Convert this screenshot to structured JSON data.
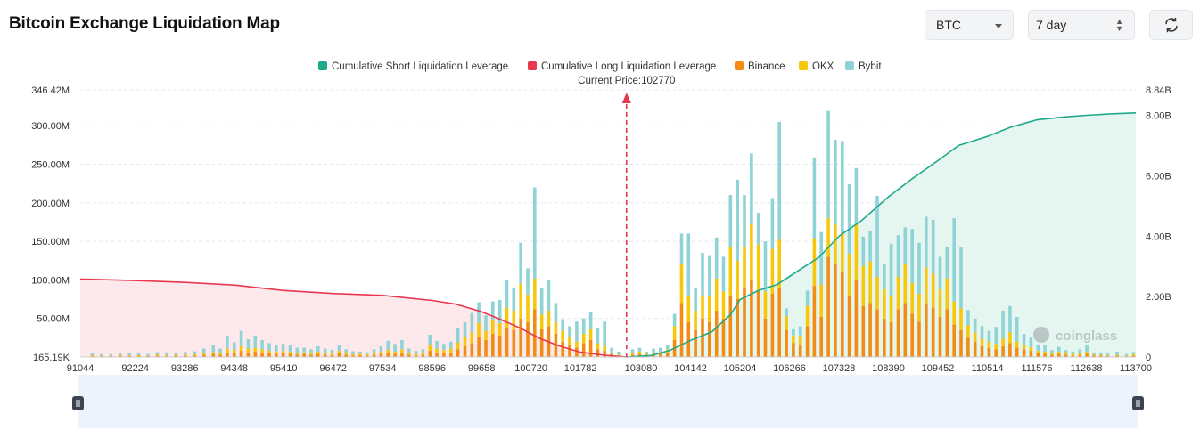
{
  "header": {
    "title": "Bitcoin Exchange Liquidation Map",
    "symbol_select": "BTC",
    "range_select": "7 day",
    "refresh_icon": "refresh-icon"
  },
  "watermark": "coinglass",
  "chart_data": {
    "type": "bar",
    "current_price_label": "Current Price:102770",
    "current_price": 102770,
    "legend": [
      {
        "name": "Cumulative Short Liquidation Leverage",
        "color": "#1fa98a"
      },
      {
        "name": "Cumulative Long Liquidation Leverage",
        "color": "#e8374f"
      },
      {
        "name": "Binance",
        "color": "#f28c13"
      },
      {
        "name": "OKX",
        "color": "#f7c70c"
      },
      {
        "name": "Bybit",
        "color": "#8fd3d6"
      }
    ],
    "x_tick_labels": [
      "91044",
      "92224",
      "93286",
      "94348",
      "95410",
      "96472",
      "97534",
      "98596",
      "99658",
      "100720",
      "101782",
      "103080",
      "104142",
      "105204",
      "106266",
      "107328",
      "108390",
      "109452",
      "110514",
      "111576",
      "112638",
      "113700"
    ],
    "x_range": [
      91044,
      113700
    ],
    "y_left_ticks": [
      "346.42M",
      "300.00M",
      "250.00M",
      "200.00M",
      "150.00M",
      "100.00M",
      "50.00M",
      "165.19K"
    ],
    "y_left_range": [
      0,
      346.42
    ],
    "y_right_ticks": [
      "8.84B",
      "8.00B",
      "6.00B",
      "4.00B",
      "2.00B",
      "0"
    ],
    "y_right_range": [
      0,
      8.84
    ],
    "bars": [
      [
        91300,
        1.5,
        1,
        3
      ],
      [
        91500,
        1,
        0.8,
        2
      ],
      [
        91700,
        1.2,
        0.6,
        2
      ],
      [
        91900,
        1.8,
        1,
        2.5
      ],
      [
        92100,
        1.4,
        0.8,
        3
      ],
      [
        92300,
        1.6,
        1,
        2.4
      ],
      [
        92500,
        1.2,
        0.7,
        2
      ],
      [
        92700,
        2,
        1.2,
        3
      ],
      [
        92900,
        1.5,
        0.9,
        3.6
      ],
      [
        93100,
        2.2,
        1,
        2.8
      ],
      [
        93300,
        1.8,
        1.2,
        3.5
      ],
      [
        93500,
        2,
        1.4,
        4
      ],
      [
        93700,
        3,
        2,
        6
      ],
      [
        93900,
        4,
        2.5,
        9
      ],
      [
        94050,
        3,
        2,
        6
      ],
      [
        94200,
        6,
        5,
        17
      ],
      [
        94350,
        5,
        4,
        10
      ],
      [
        94500,
        8,
        6,
        20
      ],
      [
        94650,
        6,
        5,
        12
      ],
      [
        94800,
        7,
        5,
        16
      ],
      [
        94950,
        6,
        4,
        12
      ],
      [
        95100,
        5,
        3,
        10
      ],
      [
        95250,
        4,
        3,
        8
      ],
      [
        95400,
        5,
        3,
        9
      ],
      [
        95550,
        4,
        3,
        8
      ],
      [
        95700,
        3,
        2,
        7
      ],
      [
        95850,
        4,
        2,
        6
      ],
      [
        96000,
        3,
        2,
        5
      ],
      [
        96150,
        4,
        3,
        7
      ],
      [
        96300,
        3,
        2,
        6
      ],
      [
        96450,
        2.5,
        2,
        5
      ],
      [
        96600,
        5,
        3,
        8
      ],
      [
        96750,
        3,
        2,
        5
      ],
      [
        96900,
        2,
        1.5,
        4
      ],
      [
        97050,
        2.5,
        1.5,
        3
      ],
      [
        97200,
        2,
        1,
        3
      ],
      [
        97350,
        3,
        2,
        5
      ],
      [
        97500,
        4,
        3,
        7
      ],
      [
        97650,
        5,
        4,
        12
      ],
      [
        97800,
        4,
        3,
        10
      ],
      [
        97950,
        6,
        4,
        12
      ],
      [
        98100,
        3,
        2,
        6
      ],
      [
        98250,
        2,
        2,
        4
      ],
      [
        98400,
        3,
        2,
        5
      ],
      [
        98550,
        8,
        7,
        14
      ],
      [
        98700,
        6,
        5,
        10
      ],
      [
        98850,
        5,
        4,
        8
      ],
      [
        99000,
        6,
        5,
        9
      ],
      [
        99150,
        10,
        9,
        18
      ],
      [
        99300,
        14,
        12,
        19
      ],
      [
        99450,
        18,
        14,
        25
      ],
      [
        99600,
        26,
        18,
        27
      ],
      [
        99750,
        22,
        12,
        20
      ],
      [
        99900,
        30,
        18,
        24
      ],
      [
        100050,
        28,
        16,
        30
      ],
      [
        100200,
        38,
        26,
        36
      ],
      [
        100350,
        35,
        25,
        30
      ],
      [
        100500,
        50,
        45,
        53
      ],
      [
        100650,
        45,
        36,
        34
      ],
      [
        100800,
        62,
        40,
        118
      ],
      [
        100950,
        36,
        19,
        35
      ],
      [
        101100,
        40,
        20,
        40
      ],
      [
        101250,
        30,
        15,
        25
      ],
      [
        101400,
        20,
        14,
        15
      ],
      [
        101550,
        16,
        10,
        14
      ],
      [
        101700,
        12,
        8,
        26
      ],
      [
        101850,
        18,
        12,
        20
      ],
      [
        102000,
        22,
        14,
        22
      ],
      [
        102150,
        10,
        8,
        19
      ],
      [
        102300,
        8,
        6,
        32
      ],
      [
        102450,
        4,
        2,
        6
      ],
      [
        102600,
        2,
        1,
        4
      ],
      [
        102900,
        3,
        2,
        5
      ],
      [
        103050,
        4,
        3,
        5
      ],
      [
        103200,
        2,
        2,
        3
      ],
      [
        103350,
        3,
        2,
        6
      ],
      [
        103500,
        4,
        2,
        6
      ],
      [
        103650,
        6,
        4,
        5
      ],
      [
        103800,
        22,
        18,
        16
      ],
      [
        103950,
        70,
        50,
        40
      ],
      [
        104100,
        45,
        35,
        80
      ],
      [
        104250,
        35,
        25,
        30
      ],
      [
        104400,
        50,
        30,
        55
      ],
      [
        104550,
        45,
        35,
        51
      ],
      [
        104700,
        60,
        42,
        53
      ],
      [
        104850,
        50,
        35,
        45
      ],
      [
        105000,
        80,
        62,
        68
      ],
      [
        105150,
        75,
        50,
        105
      ],
      [
        105300,
        90,
        52,
        68
      ],
      [
        105450,
        100,
        72,
        92
      ],
      [
        105600,
        86,
        60,
        41
      ],
      [
        105750,
        50,
        35,
        65
      ],
      [
        105900,
        82,
        58,
        66
      ],
      [
        106050,
        90,
        62,
        153
      ],
      [
        106200,
        35,
        18,
        10
      ],
      [
        106350,
        18,
        10,
        8
      ],
      [
        106500,
        16,
        12,
        12
      ],
      [
        106650,
        40,
        26,
        20
      ],
      [
        106800,
        92,
        62,
        105
      ],
      [
        106950,
        52,
        42,
        68
      ],
      [
        107100,
        130,
        50,
        139
      ],
      [
        107250,
        120,
        52,
        110
      ],
      [
        107400,
        110,
        50,
        120
      ],
      [
        107550,
        80,
        54,
        90
      ],
      [
        107700,
        100,
        72,
        73
      ],
      [
        107850,
        66,
        52,
        38
      ],
      [
        108000,
        70,
        54,
        39
      ],
      [
        108150,
        62,
        42,
        105
      ],
      [
        108300,
        50,
        38,
        32
      ],
      [
        108450,
        45,
        35,
        67
      ],
      [
        108600,
        62,
        42,
        54
      ],
      [
        108750,
        70,
        50,
        48
      ],
      [
        108900,
        56,
        40,
        70
      ],
      [
        109050,
        46,
        36,
        66
      ],
      [
        109200,
        70,
        46,
        66
      ],
      [
        109350,
        64,
        44,
        70
      ],
      [
        109500,
        52,
        36,
        42
      ],
      [
        109650,
        62,
        40,
        40
      ],
      [
        109800,
        42,
        30,
        108
      ],
      [
        109950,
        35,
        28,
        80
      ],
      [
        110100,
        25,
        16,
        20
      ],
      [
        110250,
        20,
        12,
        18
      ],
      [
        110400,
        14,
        10,
        16
      ],
      [
        110550,
        12,
        8,
        14
      ],
      [
        110700,
        10,
        7,
        22
      ],
      [
        110850,
        14,
        10,
        36
      ],
      [
        111000,
        18,
        14,
        34
      ],
      [
        111150,
        12,
        8,
        32
      ],
      [
        111300,
        10,
        6,
        14
      ],
      [
        111450,
        8,
        5,
        12
      ],
      [
        111600,
        5,
        3,
        8
      ],
      [
        111750,
        4,
        3,
        8
      ],
      [
        111900,
        3,
        2,
        4
      ],
      [
        112050,
        4,
        3,
        6
      ],
      [
        112200,
        3,
        2,
        4
      ],
      [
        112350,
        2,
        2,
        3
      ],
      [
        112500,
        3,
        2,
        5
      ],
      [
        112650,
        4,
        3,
        8
      ],
      [
        112800,
        2,
        1,
        3
      ],
      [
        112950,
        2,
        1,
        3
      ],
      [
        113100,
        1.5,
        1,
        2
      ],
      [
        113300,
        2,
        1,
        4
      ],
      [
        113500,
        1,
        0.8,
        2
      ],
      [
        113650,
        2,
        1.5,
        3
      ]
    ],
    "long_cumulative": [
      [
        91044,
        2.58
      ],
      [
        92200,
        2.53
      ],
      [
        93300,
        2.47
      ],
      [
        94348,
        2.38
      ],
      [
        95410,
        2.2
      ],
      [
        96472,
        2.1
      ],
      [
        97534,
        2.04
      ],
      [
        98596,
        1.87
      ],
      [
        99100,
        1.75
      ],
      [
        99658,
        1.5
      ],
      [
        100100,
        1.22
      ],
      [
        100500,
        0.95
      ],
      [
        100900,
        0.62
      ],
      [
        101300,
        0.38
      ],
      [
        101782,
        0.16
      ],
      [
        102300,
        0.06
      ],
      [
        102770,
        0
      ]
    ],
    "short_cumulative": [
      [
        102770,
        0
      ],
      [
        103300,
        0.05
      ],
      [
        103700,
        0.22
      ],
      [
        104142,
        0.55
      ],
      [
        104600,
        0.83
      ],
      [
        105000,
        1.4
      ],
      [
        105204,
        1.9
      ],
      [
        105600,
        2.2
      ],
      [
        106000,
        2.4
      ],
      [
        106500,
        2.9
      ],
      [
        106900,
        3.3
      ],
      [
        107328,
        4.0
      ],
      [
        107800,
        4.5
      ],
      [
        108390,
        5.3
      ],
      [
        108900,
        5.9
      ],
      [
        109452,
        6.5
      ],
      [
        109900,
        7.0
      ],
      [
        110514,
        7.3
      ],
      [
        111000,
        7.6
      ],
      [
        111576,
        7.85
      ],
      [
        112200,
        7.95
      ],
      [
        112638,
        8.0
      ],
      [
        113200,
        8.05
      ],
      [
        113700,
        8.08
      ]
    ]
  }
}
